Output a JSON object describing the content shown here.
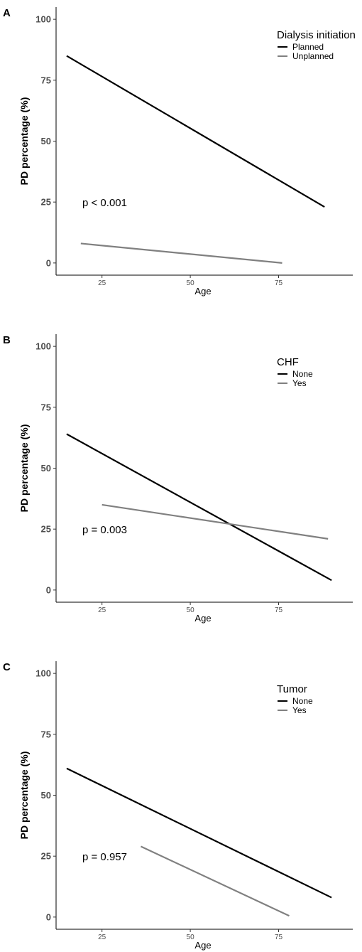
{
  "chart_data": [
    {
      "type": "line",
      "panel": "A",
      "title": "",
      "xlabel": "Age",
      "ylabel": "PD percentage (%)",
      "xlim": [
        12,
        96
      ],
      "ylim": [
        -5,
        105
      ],
      "xticks": [
        25,
        50,
        75
      ],
      "yticks": [
        0,
        25,
        50,
        75,
        100
      ],
      "legend": {
        "title": "Dialysis initiation",
        "position": "top-right"
      },
      "annotation": "p < 0.001",
      "series": [
        {
          "name": "Planned",
          "color": "#000000",
          "x": [
            15,
            88
          ],
          "y": [
            85,
            23
          ]
        },
        {
          "name": "Unplanned",
          "color": "#808080",
          "x": [
            19,
            76
          ],
          "y": [
            8,
            0
          ]
        }
      ]
    },
    {
      "type": "line",
      "panel": "B",
      "title": "",
      "xlabel": "Age",
      "ylabel": "PD percentage (%)",
      "xlim": [
        12,
        96
      ],
      "ylim": [
        -5,
        105
      ],
      "xticks": [
        25,
        50,
        75
      ],
      "yticks": [
        0,
        25,
        50,
        75,
        100
      ],
      "legend": {
        "title": "CHF",
        "position": "top-right"
      },
      "annotation": "p = 0.003",
      "series": [
        {
          "name": "None",
          "color": "#000000",
          "x": [
            15,
            90
          ],
          "y": [
            64,
            4
          ]
        },
        {
          "name": "Yes",
          "color": "#808080",
          "x": [
            25,
            89
          ],
          "y": [
            35,
            21
          ]
        }
      ]
    },
    {
      "type": "line",
      "panel": "C",
      "title": "",
      "xlabel": "Age",
      "ylabel": "PD percentage (%)",
      "xlim": [
        12,
        96
      ],
      "ylim": [
        -5,
        105
      ],
      "xticks": [
        25,
        50,
        75
      ],
      "yticks": [
        0,
        25,
        50,
        75,
        100
      ],
      "legend": {
        "title": "Tumor",
        "position": "top-right"
      },
      "annotation": "p = 0.957",
      "series": [
        {
          "name": "None",
          "color": "#000000",
          "x": [
            15,
            90
          ],
          "y": [
            61,
            8
          ]
        },
        {
          "name": "Yes",
          "color": "#808080",
          "x": [
            36,
            78
          ],
          "y": [
            29,
            0.5
          ]
        }
      ]
    }
  ]
}
